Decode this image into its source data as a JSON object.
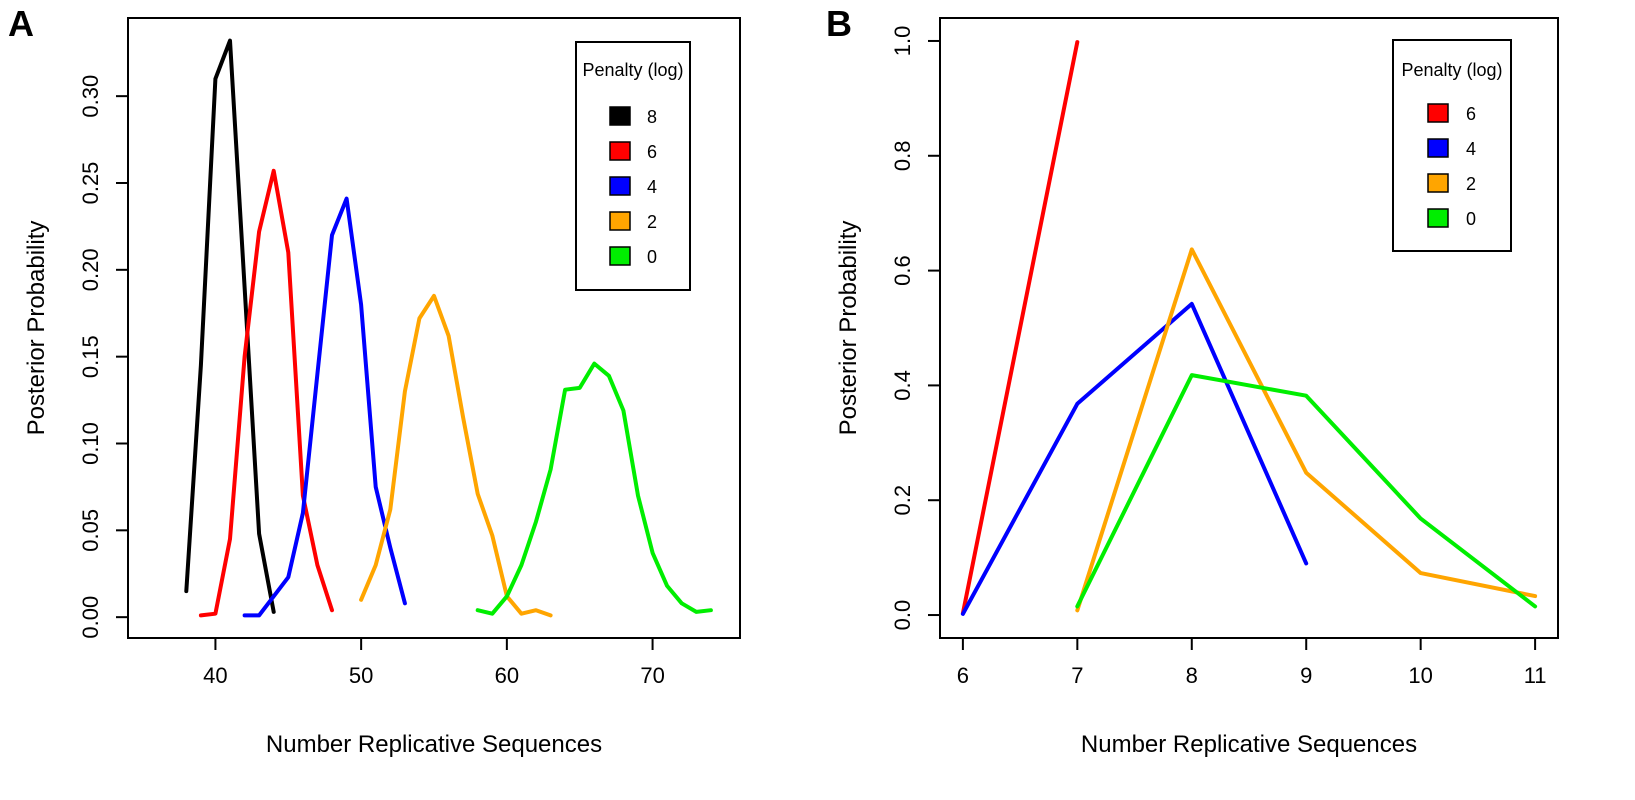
{
  "chart_data": [
    {
      "type": "line",
      "panel_label": "A",
      "title": "",
      "xlabel": "Number Replicative Sequences",
      "ylabel": "Posterior Probability",
      "xlim": [
        34,
        76
      ],
      "ylim": [
        -0.012,
        0.345
      ],
      "xticks": [
        40,
        50,
        60,
        70
      ],
      "yticks": [
        0.0,
        0.05,
        0.1,
        0.15,
        0.2,
        0.25,
        0.3
      ],
      "ytick_labels": [
        "0.00",
        "0.05",
        "0.10",
        "0.15",
        "0.20",
        "0.25",
        "0.30"
      ],
      "grid": false,
      "legend": {
        "title": "Penalty (log)",
        "position": "top-right"
      },
      "series": [
        {
          "name": "8",
          "color": "#000000",
          "x": [
            38,
            39,
            40,
            41,
            42,
            43,
            44
          ],
          "y": [
            0.015,
            0.145,
            0.31,
            0.332,
            0.19,
            0.048,
            0.003
          ]
        },
        {
          "name": "6",
          "color": "#ff0000",
          "x": [
            39,
            40,
            41,
            42,
            43,
            44,
            45,
            46,
            47,
            48
          ],
          "y": [
            0.001,
            0.002,
            0.045,
            0.15,
            0.222,
            0.257,
            0.21,
            0.07,
            0.03,
            0.004
          ]
        },
        {
          "name": "4",
          "color": "#0000ff",
          "x": [
            42,
            43,
            44,
            45,
            46,
            47,
            48,
            49,
            50,
            51,
            52,
            53
          ],
          "y": [
            0.001,
            0.001,
            0.012,
            0.023,
            0.06,
            0.14,
            0.22,
            0.241,
            0.18,
            0.075,
            0.04,
            0.008
          ]
        },
        {
          "name": "2",
          "color": "#ffa500",
          "x": [
            50,
            51,
            52,
            53,
            54,
            55,
            56,
            57,
            58,
            59,
            60,
            61,
            62,
            63
          ],
          "y": [
            0.01,
            0.03,
            0.062,
            0.13,
            0.172,
            0.185,
            0.162,
            0.115,
            0.071,
            0.047,
            0.012,
            0.002,
            0.004,
            0.001
          ]
        },
        {
          "name": "0",
          "color": "#00ee00",
          "x": [
            58,
            59,
            60,
            61,
            62,
            63,
            64,
            65,
            66,
            67,
            68,
            69,
            70,
            71,
            72,
            73,
            74
          ],
          "y": [
            0.004,
            0.002,
            0.012,
            0.03,
            0.055,
            0.085,
            0.131,
            0.132,
            0.146,
            0.139,
            0.119,
            0.07,
            0.037,
            0.018,
            0.008,
            0.003,
            0.004
          ]
        }
      ]
    },
    {
      "type": "line",
      "panel_label": "B",
      "title": "",
      "xlabel": "Number Replicative Sequences",
      "ylabel": "Posterior Probability",
      "xlim": [
        5.8,
        11.2
      ],
      "ylim": [
        -0.04,
        1.04
      ],
      "xticks": [
        6,
        7,
        8,
        9,
        10,
        11
      ],
      "yticks": [
        0.0,
        0.2,
        0.4,
        0.6,
        0.8,
        1.0
      ],
      "ytick_labels": [
        "0.0",
        "0.2",
        "0.4",
        "0.6",
        "0.8",
        "1.0"
      ],
      "grid": false,
      "legend": {
        "title": "Penalty (log)",
        "position": "top-right"
      },
      "series": [
        {
          "name": "6",
          "color": "#ff0000",
          "x": [
            6,
            7
          ],
          "y": [
            0.003,
            0.998
          ]
        },
        {
          "name": "4",
          "color": "#0000ff",
          "x": [
            6,
            7,
            8,
            9
          ],
          "y": [
            0.002,
            0.368,
            0.542,
            0.09
          ]
        },
        {
          "name": "2",
          "color": "#ffa500",
          "x": [
            7,
            8,
            9,
            10,
            11
          ],
          "y": [
            0.008,
            0.637,
            0.248,
            0.073,
            0.033
          ]
        },
        {
          "name": "0",
          "color": "#00ee00",
          "x": [
            7,
            8,
            9,
            10,
            11
          ],
          "y": [
            0.015,
            0.418,
            0.382,
            0.168,
            0.015
          ]
        }
      ]
    }
  ]
}
